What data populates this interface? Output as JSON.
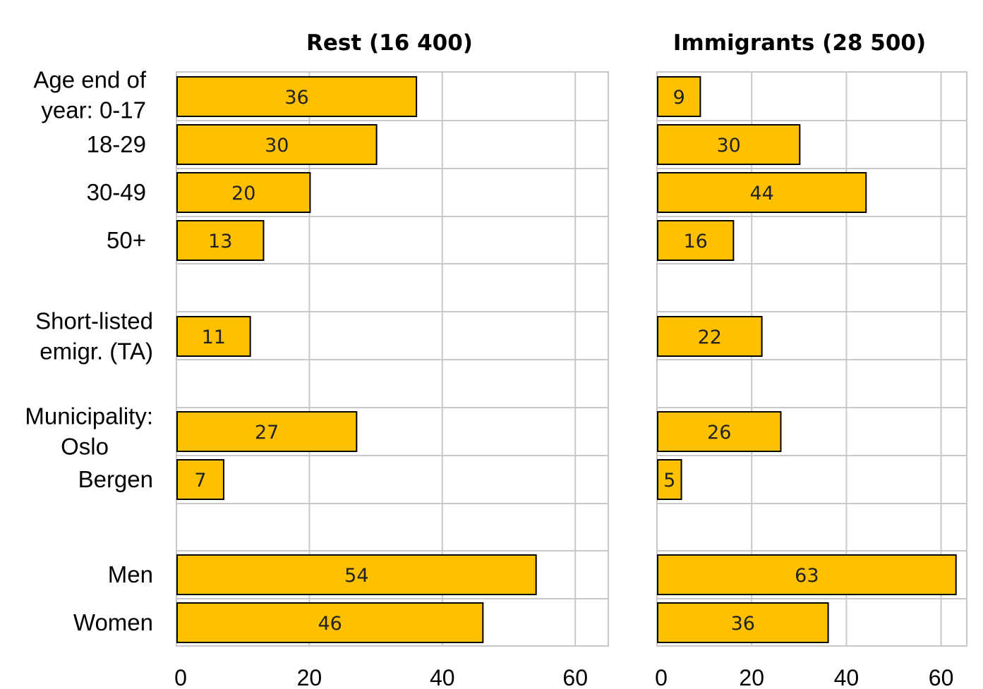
{
  "chart_data": [
    {
      "type": "bar",
      "orientation": "horizontal",
      "title": "Rest (16 400)",
      "categories": [
        "Age end of year:  0-17",
        "18-29",
        "30-49",
        "50+",
        "Short-listed emigr. (TA)",
        "Municipality: Oslo",
        "Bergen",
        "Men",
        "Women"
      ],
      "values": [
        36,
        30,
        20,
        13,
        11,
        27,
        7,
        54,
        46
      ],
      "xlim": [
        0,
        65
      ],
      "xticks": [
        0,
        20,
        40,
        60
      ],
      "grid": true
    },
    {
      "type": "bar",
      "orientation": "horizontal",
      "title": "Immigrants (28 500)",
      "categories": [
        "Age end of year:  0-17",
        "18-29",
        "30-49",
        "50+",
        "Short-listed emigr. (TA)",
        "Municipality: Oslo",
        "Bergen",
        "Men",
        "Women"
      ],
      "values": [
        9,
        30,
        44,
        16,
        22,
        26,
        5,
        63,
        36
      ],
      "xlim": [
        0,
        65
      ],
      "xticks": [
        0,
        20,
        40,
        60
      ],
      "grid": true
    }
  ],
  "row_labels": [
    [
      "Age end of",
      "year:  0-17"
    ],
    [
      "18-29"
    ],
    [
      "30-49"
    ],
    [
      "50+"
    ],
    [
      "Short-listed",
      "emigr. (TA)"
    ],
    [
      "Municipality:",
      "Oslo"
    ],
    [
      "Bergen"
    ],
    [
      "Men"
    ],
    [
      "Women"
    ]
  ],
  "colors": {
    "bar": "#FFC000",
    "grid": "#C8C8C8"
  }
}
